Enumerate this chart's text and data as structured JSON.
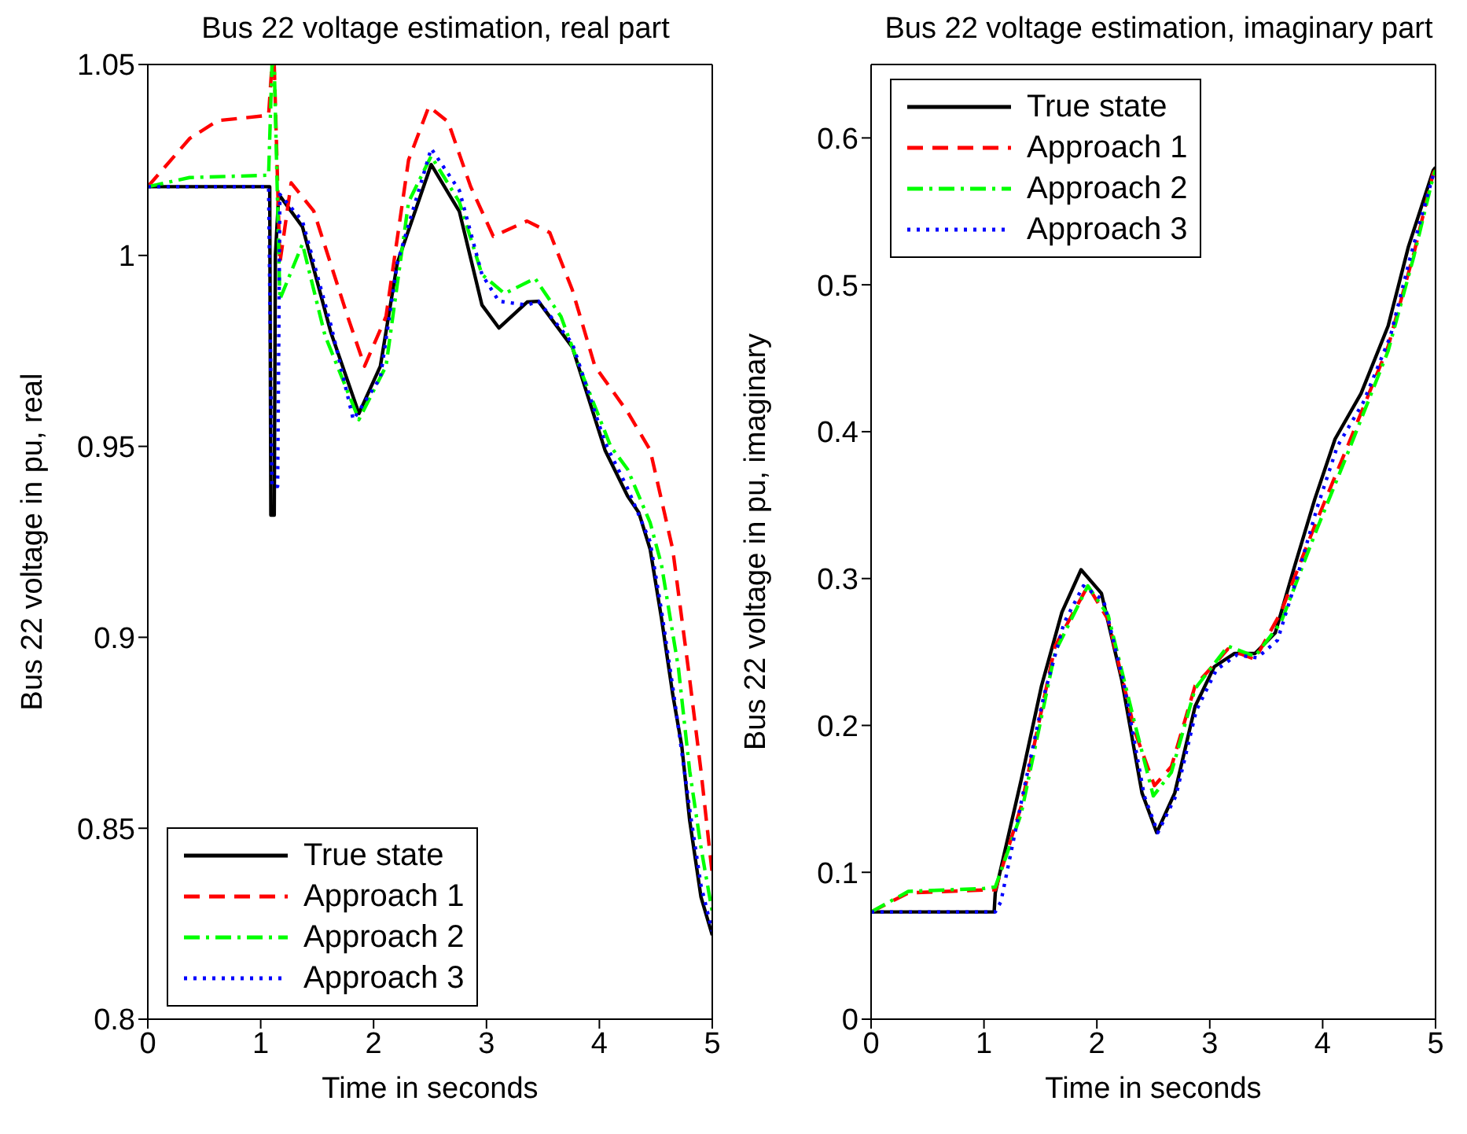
{
  "chart_data": [
    {
      "type": "line",
      "title": "Bus 22 voltage estimation, real part",
      "xlabel": "Time in seconds",
      "ylabel": "Bus 22 voltage in pu, real",
      "xlim": [
        0,
        5
      ],
      "xticks": [
        0,
        1,
        2,
        3,
        4,
        5
      ],
      "ylim": [
        0.8,
        1.05
      ],
      "yticks": [
        0.8,
        0.85,
        0.9,
        0.95,
        1,
        1.05
      ],
      "legend": "bottom left",
      "grid": false,
      "series": [
        {
          "name": "True state",
          "color": "#000000",
          "line_style": "solid",
          "x": [
            0,
            0.5,
            1.0,
            1.08,
            1.09,
            1.12,
            1.13,
            1.16,
            1.37,
            1.62,
            1.87,
            2.06,
            2.21,
            2.51,
            2.76,
            2.96,
            3.11,
            3.36,
            3.46,
            3.76,
            4.05,
            4.25,
            4.35,
            4.45,
            4.55,
            4.65,
            4.73,
            4.8,
            4.9,
            5
          ],
          "values": [
            1.018,
            1.018,
            1.018,
            1.018,
            0.932,
            0.932,
            1.0,
            1.016,
            1.0075,
            0.98,
            0.9586,
            0.971,
            0.998,
            1.0238,
            1.0115,
            0.987,
            0.981,
            0.9878,
            0.988,
            0.976,
            0.949,
            0.937,
            0.9326,
            0.923,
            0.905,
            0.885,
            0.8715,
            0.852,
            0.832,
            0.822
          ]
        },
        {
          "name": "Approach 1",
          "color": "#ff0000",
          "line_style": "dashed",
          "x": [
            0,
            0.37,
            0.62,
            1.07,
            1.1,
            1.12,
            1.17,
            1.27,
            1.47,
            1.77,
            1.92,
            2.11,
            2.31,
            2.49,
            2.66,
            2.86,
            3.06,
            3.36,
            3.56,
            3.76,
            3.96,
            4.25,
            4.45,
            4.65,
            4.8,
            4.9,
            5
          ],
          "values": [
            1.018,
            1.0306,
            1.0353,
            1.0367,
            1.05,
            1.05,
            0.998,
            1.019,
            1.0116,
            0.984,
            0.971,
            0.984,
            1.025,
            1.039,
            1.035,
            1.018,
            1.005,
            1.009,
            1.006,
            0.991,
            0.971,
            0.959,
            0.949,
            0.923,
            0.889,
            0.865,
            0.838
          ]
        },
        {
          "name": "Approach 2",
          "color": "#00ff00",
          "line_style": "dashdot",
          "x": [
            0,
            0.37,
            1.07,
            1.1,
            1.12,
            1.17,
            1.37,
            1.57,
            1.87,
            2.11,
            2.31,
            2.51,
            2.76,
            2.96,
            3.16,
            3.43,
            3.66,
            3.86,
            4.1,
            4.25,
            4.45,
            4.55,
            4.7,
            4.8,
            4.9,
            5
          ],
          "values": [
            1.018,
            1.0204,
            1.021,
            1.05,
            1.05,
            0.9885,
            1.003,
            0.979,
            0.957,
            0.971,
            1.014,
            1.026,
            1.014,
            0.995,
            0.99,
            0.994,
            0.984,
            0.968,
            0.95,
            0.944,
            0.93,
            0.919,
            0.892,
            0.865,
            0.845,
            0.828
          ]
        },
        {
          "name": "Approach 3",
          "color": "#0000ff",
          "line_style": "dotted",
          "x": [
            0,
            0.5,
            1.0,
            1.07,
            1.1,
            1.15,
            1.17,
            1.37,
            1.62,
            1.82,
            2.06,
            2.21,
            2.51,
            2.76,
            2.96,
            3.11,
            3.36,
            3.46,
            3.76,
            4.05,
            4.25,
            4.45,
            4.55,
            4.65,
            4.8,
            4.9,
            5
          ],
          "values": [
            1.018,
            1.018,
            1.018,
            1.018,
            0.9395,
            0.9395,
            1.016,
            1.009,
            0.982,
            0.957,
            0.968,
            0.998,
            1.028,
            1.017,
            0.995,
            0.988,
            0.987,
            0.988,
            0.977,
            0.951,
            0.939,
            0.925,
            0.907,
            0.887,
            0.855,
            0.835,
            0.823
          ]
        }
      ]
    },
    {
      "type": "line",
      "title": "Bus 22 voltage estimation, imaginary part",
      "xlabel": "Time in seconds",
      "ylabel": "Bus 22 voltage in pu, imaginary",
      "xlim": [
        0,
        5
      ],
      "xticks": [
        0,
        1,
        2,
        3,
        4,
        5
      ],
      "ylim": [
        0,
        0.65
      ],
      "yticks": [
        0,
        0.1,
        0.2,
        0.3,
        0.4,
        0.5,
        0.6
      ],
      "legend": "top left",
      "grid": false,
      "series": [
        {
          "name": "True state",
          "color": "#000000",
          "line_style": "solid",
          "x": [
            0,
            0.5,
            1.09,
            1.1,
            1.33,
            1.51,
            1.69,
            1.86,
            2.04,
            2.22,
            2.4,
            2.53,
            2.69,
            2.87,
            3.04,
            3.22,
            3.4,
            3.58,
            3.75,
            3.93,
            4.11,
            4.34,
            4.58,
            4.76,
            4.98,
            5
          ],
          "values": [
            0.073,
            0.073,
            0.073,
            0.086,
            0.163,
            0.227,
            0.277,
            0.306,
            0.29,
            0.231,
            0.154,
            0.127,
            0.154,
            0.213,
            0.24,
            0.249,
            0.249,
            0.263,
            0.308,
            0.354,
            0.395,
            0.426,
            0.472,
            0.526,
            0.578,
            0.58
          ]
        },
        {
          "name": "Approach 1",
          "color": "#ff0000",
          "line_style": "dashed",
          "x": [
            0,
            0.33,
            1.0,
            1.1,
            1.33,
            1.63,
            1.92,
            2.1,
            2.34,
            2.51,
            2.66,
            2.87,
            3.16,
            3.4,
            3.63,
            3.93,
            4.22,
            4.58,
            4.81,
            4.98,
            5
          ],
          "values": [
            0.073,
            0.086,
            0.088,
            0.088,
            0.145,
            0.254,
            0.295,
            0.272,
            0.195,
            0.159,
            0.172,
            0.227,
            0.252,
            0.245,
            0.277,
            0.336,
            0.39,
            0.458,
            0.522,
            0.576,
            0.578
          ]
        },
        {
          "name": "Approach 2",
          "color": "#00ff00",
          "line_style": "dashdot",
          "x": [
            0,
            0.33,
            1.0,
            1.1,
            1.33,
            1.63,
            1.92,
            2.1,
            2.34,
            2.5,
            2.66,
            2.87,
            3.16,
            3.4,
            3.63,
            3.93,
            4.22,
            4.58,
            4.81,
            4.98,
            5
          ],
          "values": [
            0.073,
            0.087,
            0.089,
            0.09,
            0.14,
            0.25,
            0.295,
            0.275,
            0.2,
            0.152,
            0.168,
            0.225,
            0.254,
            0.247,
            0.27,
            0.33,
            0.385,
            0.455,
            0.52,
            0.574,
            0.578
          ]
        },
        {
          "name": "Approach 3",
          "color": "#0000ff",
          "line_style": "dotted",
          "x": [
            0,
            0.5,
            1.1,
            1.15,
            1.35,
            1.53,
            1.71,
            1.88,
            2.06,
            2.24,
            2.42,
            2.54,
            2.7,
            2.88,
            3.06,
            3.24,
            3.42,
            3.6,
            3.77,
            3.95,
            4.13,
            4.36,
            4.6,
            4.78,
            4.98,
            5
          ],
          "values": [
            0.073,
            0.073,
            0.073,
            0.08,
            0.155,
            0.22,
            0.27,
            0.295,
            0.285,
            0.228,
            0.152,
            0.127,
            0.152,
            0.21,
            0.238,
            0.248,
            0.246,
            0.258,
            0.3,
            0.348,
            0.39,
            0.42,
            0.465,
            0.52,
            0.575,
            0.578
          ]
        }
      ]
    }
  ]
}
